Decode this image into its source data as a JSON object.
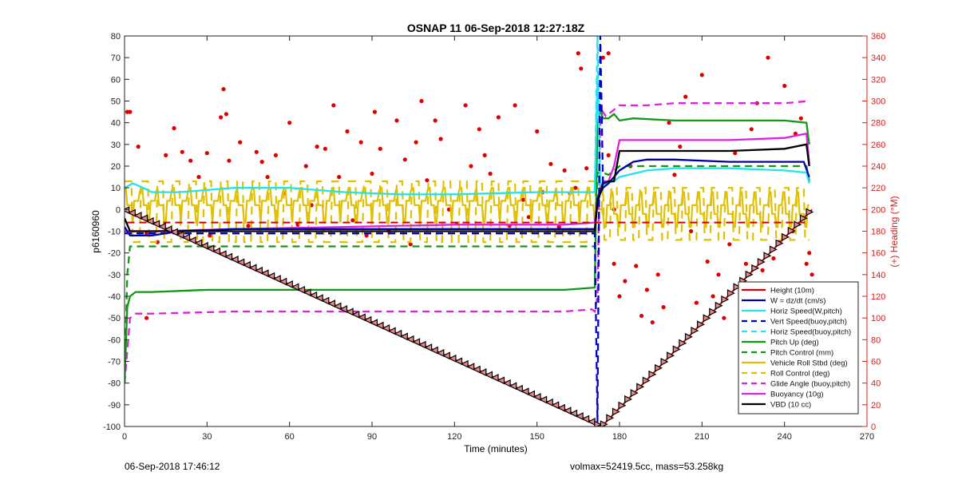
{
  "chart_data": {
    "type": "line",
    "title": "OSNAP 11 06-Sep-2018 12:27:18Z",
    "xlabel": "Time (minutes)",
    "ylabel": "p6160960",
    "y2label": "(+) Heading (°M)",
    "xlim": [
      0,
      270
    ],
    "ylim": [
      -100,
      80
    ],
    "y2lim": [
      0,
      360
    ],
    "xticks": [
      "0",
      "30",
      "60",
      "90",
      "120",
      "150",
      "180",
      "210",
      "240",
      "270"
    ],
    "yticks": [
      "80",
      "70",
      "60",
      "50",
      "40",
      "30",
      "20",
      "10",
      "0",
      "-10",
      "-20",
      "-30",
      "-40",
      "-50",
      "-60",
      "-70",
      "-80",
      "-90",
      "-100"
    ],
    "y2ticks": [
      "360",
      "340",
      "320",
      "300",
      "280",
      "260",
      "240",
      "220",
      "200",
      "180",
      "160",
      "140",
      "120",
      "100",
      "80",
      "60",
      "40",
      "20",
      "0"
    ],
    "grid": false,
    "legend_position": "bottom-right",
    "series": [
      {
        "name": "Height (10m)",
        "color": "#cc0000",
        "style": "solid",
        "x": [
          0,
          172,
          173.5,
          250
        ],
        "y": [
          0,
          -99,
          -100,
          0
        ]
      },
      {
        "name": "W = dz/dt (cm/s)",
        "color": "#0000aa",
        "style": "solid",
        "x": [
          0,
          2,
          10,
          20,
          40,
          80,
          120,
          160,
          171,
          172,
          174,
          176,
          180,
          185,
          190,
          200,
          220,
          240,
          247,
          249
        ],
        "y": [
          -8,
          -12,
          -12,
          -10,
          -9,
          -9,
          -9,
          -9,
          -9,
          5,
          10,
          12,
          18,
          22,
          23,
          23,
          22,
          22,
          22,
          15
        ]
      },
      {
        "name": "Horiz Speed(W,pitch)",
        "color": "#22e4f0",
        "style": "solid",
        "x": [
          0,
          3,
          5,
          10,
          20,
          30,
          40,
          50,
          60,
          80,
          100,
          120,
          150,
          165,
          171,
          172,
          173,
          175,
          178,
          180,
          190,
          200,
          220,
          240,
          248,
          249
        ],
        "y": [
          10,
          12,
          11,
          8,
          8,
          9,
          10,
          10,
          10,
          8,
          7,
          7,
          8,
          8,
          8,
          62,
          10,
          12,
          13,
          15,
          18,
          19,
          19,
          18,
          17,
          12
        ]
      },
      {
        "name": "Vert Speed(buoy,pitch)",
        "color": "#0000cc",
        "style": "dashed",
        "x": [
          0,
          171,
          172,
          173,
          174,
          175
        ],
        "y": [
          -11,
          -11,
          -98,
          80,
          12,
          12
        ]
      },
      {
        "name": "Horiz Speed(buoy,pitch)",
        "color": "#22e4f0",
        "style": "dashed",
        "x": [
          171,
          172,
          173
        ],
        "y": [
          8,
          80,
          10
        ]
      },
      {
        "name": "Pitch Up (deg)",
        "color": "#119911",
        "style": "solid",
        "x": [
          0,
          1,
          2,
          4,
          10,
          30,
          60,
          100,
          140,
          160,
          171,
          172,
          173,
          174,
          176,
          178,
          180,
          185,
          200,
          220,
          240,
          248,
          249
        ],
        "y": [
          -80,
          -45,
          -40,
          -38,
          -38,
          -37,
          -37,
          -37,
          -37,
          -37,
          -36,
          40,
          46,
          42,
          42,
          44,
          41,
          42,
          41,
          41,
          41,
          40,
          30
        ]
      },
      {
        "name": "Pitch Control (mm)",
        "color": "#119911",
        "style": "dashed",
        "x": [
          0,
          1,
          2,
          171,
          172,
          174,
          176,
          178,
          180,
          200,
          240,
          248,
          249
        ],
        "y": [
          -80,
          -30,
          -17,
          -17,
          17,
          17,
          16,
          18,
          20,
          20,
          20,
          20,
          13
        ]
      },
      {
        "name": "Vehicle Roll Stbd (deg)",
        "color": "#e0c000",
        "style": "solid",
        "x": [],
        "y": []
      },
      {
        "name": "Roll Control (deg)",
        "color": "#e0c000",
        "style": "dashed",
        "x": [],
        "y": []
      },
      {
        "name": "Glide Angle (buoy,pitch)",
        "color": "#dd22dd",
        "style": "dashed",
        "x": [
          0,
          2,
          4,
          10,
          40,
          80,
          120,
          160,
          170,
          171,
          172,
          173,
          174,
          175,
          178,
          180,
          190,
          200,
          220,
          240,
          249
        ],
        "y": [
          -80,
          -50,
          -48,
          -48,
          -47,
          -47,
          -47,
          -47,
          -46,
          -47,
          -40,
          40,
          45,
          43,
          46,
          48,
          48,
          49,
          49,
          49,
          50
        ]
      },
      {
        "name": "Buoyancy (10g)",
        "color": "#dd22dd",
        "style": "solid",
        "x": [
          0,
          10,
          40,
          80,
          120,
          160,
          171,
          172,
          174,
          176,
          178,
          180,
          200,
          220,
          240,
          248,
          249
        ],
        "y": [
          -10,
          -10,
          -9,
          -8,
          -7,
          -7,
          -6,
          5,
          13,
          13,
          20,
          32,
          32,
          32,
          33,
          35,
          21
        ]
      },
      {
        "name": "VBD (10 cc)",
        "color": "#000000",
        "style": "solid",
        "x": [
          0,
          2,
          10,
          40,
          80,
          120,
          160,
          171,
          172,
          174,
          176,
          178,
          180,
          200,
          220,
          240,
          248,
          249
        ],
        "y": [
          -4,
          -10,
          -10,
          -10,
          -10,
          -10,
          -10,
          -10,
          3,
          12,
          13,
          13,
          27,
          27,
          27,
          28,
          30,
          20
        ]
      }
    ],
    "heading_points_deg": [
      [
        1,
        290
      ],
      [
        2,
        290
      ],
      [
        5,
        258
      ],
      [
        8,
        178
      ],
      [
        8,
        100
      ],
      [
        12,
        170
      ],
      [
        15,
        250
      ],
      [
        18,
        275
      ],
      [
        21,
        253
      ],
      [
        24,
        245
      ],
      [
        27,
        230
      ],
      [
        30,
        252
      ],
      [
        31,
        176
      ],
      [
        35,
        285
      ],
      [
        36,
        311
      ],
      [
        37,
        288
      ],
      [
        38,
        245
      ],
      [
        42,
        262
      ],
      [
        45,
        185
      ],
      [
        48,
        253
      ],
      [
        50,
        244
      ],
      [
        52,
        230
      ],
      [
        55,
        250
      ],
      [
        58,
        215
      ],
      [
        60,
        280
      ],
      [
        63,
        186
      ],
      [
        66,
        240
      ],
      [
        68,
        204
      ],
      [
        70,
        258
      ],
      [
        73,
        256
      ],
      [
        76,
        296
      ],
      [
        78,
        230
      ],
      [
        81,
        272
      ],
      [
        83,
        190
      ],
      [
        86,
        262
      ],
      [
        88,
        176
      ],
      [
        90,
        233
      ],
      [
        91,
        290
      ],
      [
        93,
        256
      ],
      [
        96,
        180
      ],
      [
        99,
        282
      ],
      [
        102,
        246
      ],
      [
        104,
        168
      ],
      [
        106,
        262
      ],
      [
        108,
        300
      ],
      [
        110,
        227
      ],
      [
        113,
        282
      ],
      [
        115,
        265
      ],
      [
        118,
        200
      ],
      [
        121,
        187
      ],
      [
        124,
        296
      ],
      [
        126,
        240
      ],
      [
        129,
        274
      ],
      [
        131,
        250
      ],
      [
        133,
        233
      ],
      [
        136,
        285
      ],
      [
        140,
        185
      ],
      [
        142,
        296
      ],
      [
        145,
        209
      ],
      [
        147,
        193
      ],
      [
        150,
        272
      ],
      [
        152,
        216
      ],
      [
        155,
        242
      ],
      [
        158,
        184
      ],
      [
        160,
        236
      ],
      [
        162,
        215
      ],
      [
        164,
        220
      ],
      [
        165,
        344
      ],
      [
        166,
        330
      ],
      [
        168,
        238
      ],
      [
        174,
        340
      ],
      [
        176,
        250
      ],
      [
        176,
        344
      ],
      [
        178,
        150
      ],
      [
        178,
        200
      ],
      [
        180,
        120
      ],
      [
        182,
        134
      ],
      [
        184,
        240
      ],
      [
        186,
        148
      ],
      [
        188,
        102
      ],
      [
        190,
        126
      ],
      [
        192,
        96
      ],
      [
        194,
        140
      ],
      [
        196,
        110
      ],
      [
        198,
        280
      ],
      [
        200,
        232
      ],
      [
        202,
        258
      ],
      [
        204,
        304
      ],
      [
        206,
        180
      ],
      [
        208,
        114
      ],
      [
        210,
        324
      ],
      [
        212,
        152
      ],
      [
        214,
        120
      ],
      [
        216,
        140
      ],
      [
        218,
        100
      ],
      [
        220,
        168
      ],
      [
        222,
        252
      ],
      [
        224,
        122
      ],
      [
        226,
        150
      ],
      [
        228,
        274
      ],
      [
        230,
        298
      ],
      [
        232,
        144
      ],
      [
        234,
        340
      ],
      [
        236,
        155
      ],
      [
        238,
        170
      ],
      [
        240,
        314
      ],
      [
        242,
        106
      ],
      [
        243,
        180
      ],
      [
        244,
        270
      ],
      [
        246,
        284
      ],
      [
        248,
        150
      ],
      [
        249,
        160
      ],
      [
        250,
        140
      ]
    ]
  },
  "footer": {
    "left": "06-Sep-2018 17:46:12",
    "right": "volmax=52419.5cc, mass=53.258kg"
  }
}
